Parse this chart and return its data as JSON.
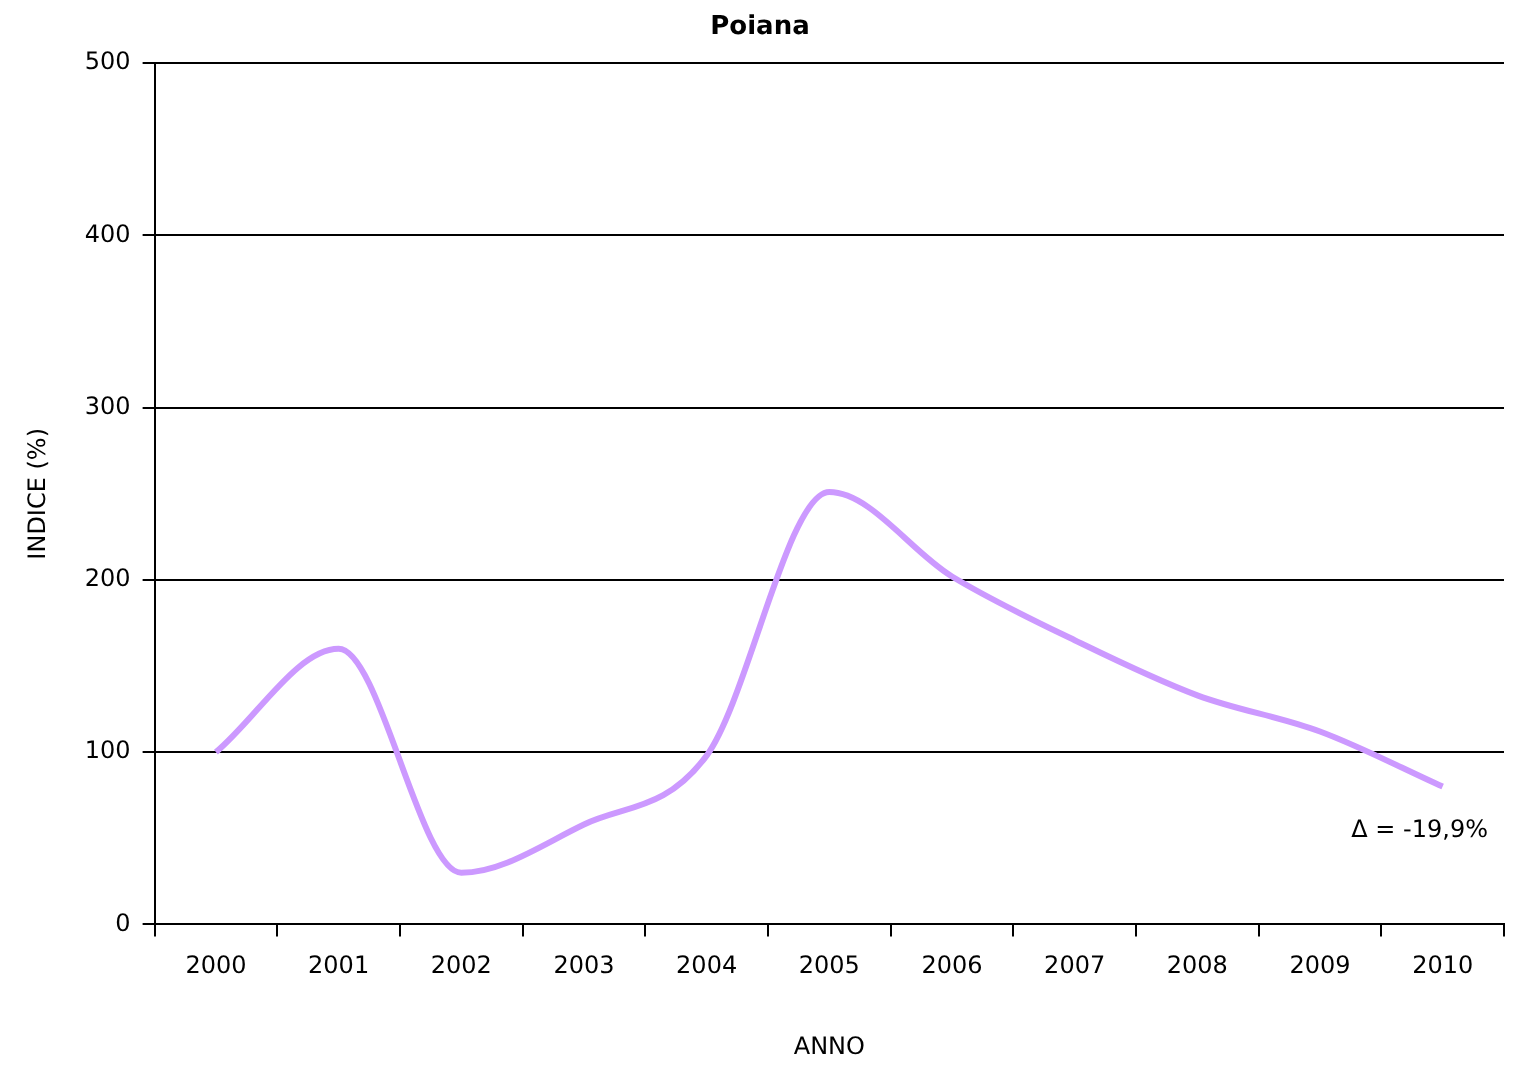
{
  "chart_data": {
    "type": "line",
    "title": "Poiana",
    "xlabel": "ANNO",
    "ylabel": "INDICE (%)",
    "categories": [
      "2000",
      "2001",
      "2002",
      "2003",
      "2004",
      "2005",
      "2006",
      "2007",
      "2008",
      "2009",
      "2010"
    ],
    "series": [
      {
        "color": "#cc99ff",
        "values": [
          100,
          160,
          30,
          58,
          98,
          251,
          202,
          165,
          133,
          112,
          80
        ]
      }
    ],
    "ylim": [
      0,
      500
    ],
    "yticks": [
      0,
      100,
      200,
      300,
      400,
      500
    ],
    "grid": "y",
    "legend": false,
    "marker": "none",
    "line_style": "solid",
    "annotations": [
      "Δ = -19,9%"
    ]
  }
}
